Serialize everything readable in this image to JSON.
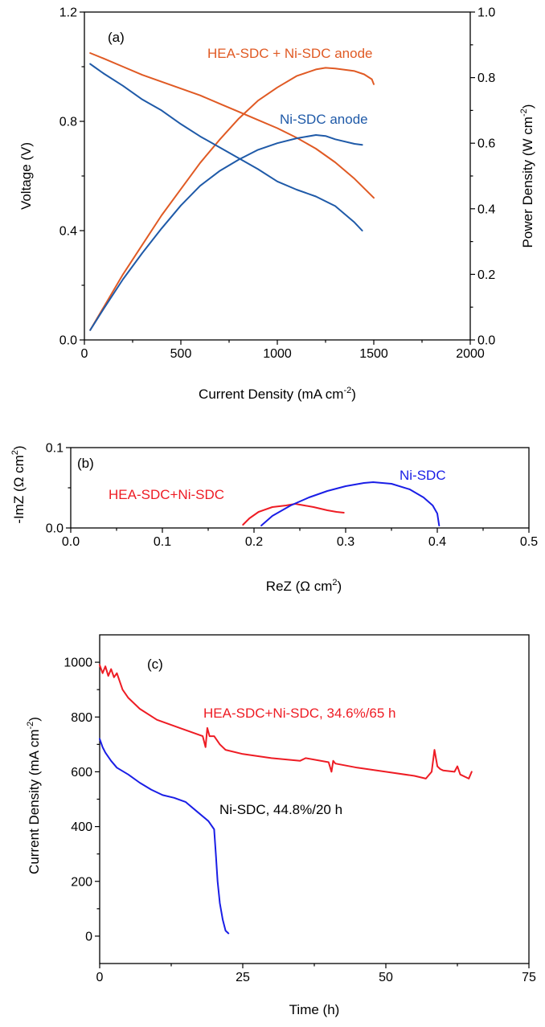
{
  "colors": {
    "orange": "#e05a24",
    "blue_a": "#1f5aa8",
    "red": "#ee1c24",
    "blue_c": "#1a1ee6"
  },
  "chart_data": [
    {
      "id": "a",
      "type": "line",
      "panel_label": "(a)",
      "xlabel": "Current Density (mA cm",
      "xlabel_sup": "-2",
      "xlabel_end": ")",
      "ylabel": "Voltage (V)",
      "y2label": "Power Density (W cm",
      "y2label_sup": "-2",
      "y2label_end": ")",
      "xlim": [
        0,
        2000
      ],
      "ylim": [
        0,
        1.2
      ],
      "y2lim": [
        0,
        1.0
      ],
      "xticks": [
        0,
        500,
        1000,
        1500,
        2000
      ],
      "xtick_labels": [
        "0",
        "500",
        "1000",
        "1500",
        "2000"
      ],
      "yticks": [
        0.0,
        0.4,
        0.8,
        1.2
      ],
      "ytick_labels": [
        "0.0",
        "0.4",
        "0.8",
        "1.2"
      ],
      "y2ticks": [
        0.0,
        0.2,
        0.4,
        0.6,
        0.8,
        1.0
      ],
      "y2tick_labels": [
        "0.0",
        "0.2",
        "0.4",
        "0.6",
        "0.8",
        "1.0"
      ],
      "annotations": [
        "HEA-SDC + Ni-SDC anode",
        "Ni-SDC anode"
      ],
      "series": [
        {
          "color": "orange",
          "axis": "left",
          "kind": "voltage",
          "x": [
            30,
            100,
            200,
            300,
            400,
            500,
            600,
            700,
            800,
            900,
            1000,
            1100,
            1200,
            1300,
            1400,
            1450,
            1500
          ],
          "y": [
            1.05,
            1.03,
            1.0,
            0.97,
            0.945,
            0.92,
            0.895,
            0.865,
            0.835,
            0.805,
            0.775,
            0.74,
            0.7,
            0.65,
            0.59,
            0.555,
            0.52
          ]
        },
        {
          "color": "orange",
          "axis": "right",
          "kind": "power",
          "x": [
            30,
            100,
            200,
            300,
            400,
            500,
            600,
            700,
            800,
            900,
            1000,
            1100,
            1200,
            1250,
            1300,
            1400,
            1450,
            1490,
            1500
          ],
          "y": [
            0.03,
            0.1,
            0.2,
            0.29,
            0.38,
            0.46,
            0.54,
            0.61,
            0.675,
            0.73,
            0.77,
            0.805,
            0.825,
            0.83,
            0.828,
            0.82,
            0.81,
            0.795,
            0.78
          ]
        },
        {
          "color": "blue_a",
          "axis": "left",
          "kind": "voltage",
          "x": [
            30,
            50,
            100,
            200,
            300,
            400,
            500,
            600,
            700,
            800,
            900,
            1000,
            1100,
            1200,
            1300,
            1400,
            1440
          ],
          "y": [
            1.01,
            1.0,
            0.975,
            0.93,
            0.88,
            0.84,
            0.79,
            0.745,
            0.705,
            0.665,
            0.625,
            0.58,
            0.55,
            0.525,
            0.49,
            0.43,
            0.4
          ]
        },
        {
          "color": "blue_a",
          "axis": "right",
          "kind": "power",
          "x": [
            30,
            100,
            200,
            300,
            400,
            500,
            600,
            700,
            800,
            900,
            1000,
            1100,
            1200,
            1250,
            1300,
            1400,
            1440
          ],
          "y": [
            0.03,
            0.095,
            0.185,
            0.265,
            0.34,
            0.41,
            0.47,
            0.515,
            0.55,
            0.58,
            0.6,
            0.615,
            0.625,
            0.622,
            0.612,
            0.598,
            0.595
          ]
        }
      ]
    },
    {
      "id": "b",
      "type": "line",
      "panel_label": "(b)",
      "xlabel": "ReZ (Ω cm",
      "xlabel_sup": "2",
      "xlabel_end": ")",
      "ylabel": "-ImZ (Ω cm",
      "ylabel_sup": "2",
      "ylabel_end": ")",
      "xlim": [
        0,
        0.5
      ],
      "ylim": [
        0,
        0.1
      ],
      "xticks": [
        0.0,
        0.1,
        0.2,
        0.3,
        0.4,
        0.5
      ],
      "xtick_labels": [
        "0.0",
        "0.1",
        "0.2",
        "0.3",
        "0.4",
        "0.5"
      ],
      "yticks": [
        0.0,
        0.1
      ],
      "ytick_labels": [
        "0.0",
        "0.1"
      ],
      "annotations": [
        "HEA-SDC+Ni-SDC",
        "Ni-SDC"
      ],
      "series": [
        {
          "color": "red",
          "x": [
            0.188,
            0.195,
            0.205,
            0.22,
            0.235,
            0.245,
            0.255,
            0.265,
            0.28,
            0.29,
            0.298
          ],
          "y": [
            0.004,
            0.012,
            0.02,
            0.026,
            0.028,
            0.03,
            0.028,
            0.026,
            0.022,
            0.02,
            0.019
          ]
        },
        {
          "color": "blue_c",
          "x": [
            0.208,
            0.22,
            0.24,
            0.26,
            0.28,
            0.3,
            0.32,
            0.33,
            0.35,
            0.37,
            0.385,
            0.395,
            0.4,
            0.402
          ],
          "y": [
            0.003,
            0.015,
            0.028,
            0.038,
            0.046,
            0.052,
            0.056,
            0.057,
            0.055,
            0.048,
            0.038,
            0.028,
            0.018,
            0.003
          ]
        }
      ]
    },
    {
      "id": "c",
      "type": "line",
      "panel_label": "(c)",
      "xlabel": "Time (h)",
      "ylabel": "Current Density (mA cm",
      "ylabel_sup": "-2",
      "ylabel_end": ")",
      "xlim": [
        0,
        75
      ],
      "ylim": [
        -100,
        1100
      ],
      "xticks": [
        0,
        25,
        50,
        75
      ],
      "xtick_labels": [
        "0",
        "25",
        "50",
        "75"
      ],
      "yticks": [
        0,
        200,
        400,
        600,
        800,
        1000
      ],
      "ytick_labels": [
        "0",
        "200",
        "400",
        "600",
        "800",
        "1000"
      ],
      "annotations": [
        "HEA-SDC+Ni-SDC, 34.6%/65 h",
        "Ni-SDC, 44.8%/20 h"
      ],
      "series": [
        {
          "color": "red",
          "x": [
            0,
            0.5,
            1,
            1.5,
            2,
            2.5,
            3,
            4,
            5,
            7,
            10,
            14,
            18,
            18.5,
            18.8,
            19.2,
            20,
            21,
            22,
            25,
            30,
            35,
            36,
            40,
            40.5,
            40.8,
            41.2,
            45,
            50,
            55,
            57,
            58,
            58.5,
            59,
            59.5,
            60,
            62,
            62.5,
            63,
            64.5,
            65
          ],
          "y": [
            990,
            960,
            985,
            950,
            975,
            945,
            960,
            900,
            870,
            830,
            790,
            760,
            730,
            690,
            760,
            730,
            730,
            700,
            680,
            665,
            650,
            640,
            650,
            635,
            600,
            640,
            630,
            615,
            600,
            585,
            575,
            600,
            680,
            620,
            610,
            605,
            600,
            620,
            590,
            575,
            600
          ]
        },
        {
          "color": "blue_c",
          "x": [
            0,
            0.5,
            1,
            2,
            3,
            5,
            7,
            9,
            11,
            13,
            15,
            17,
            19,
            20,
            20.3,
            20.6,
            21,
            21.5,
            22,
            22.5
          ],
          "y": [
            720,
            690,
            670,
            640,
            615,
            590,
            560,
            535,
            515,
            505,
            490,
            455,
            420,
            390,
            300,
            200,
            120,
            60,
            20,
            10
          ]
        }
      ]
    }
  ]
}
